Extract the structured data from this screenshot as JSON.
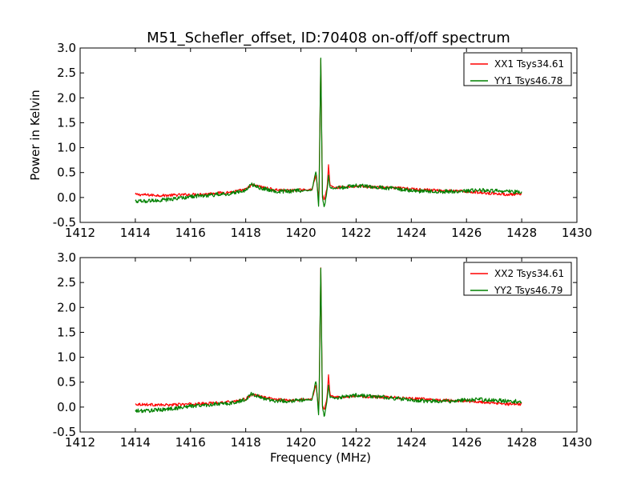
{
  "figure": {
    "title": "M51_Schefler_offset, ID:70408 on-off/off spectrum"
  },
  "chart_data": [
    {
      "type": "line",
      "title": "M51_Schefler_offset, ID:70408 on-off/off spectrum",
      "xlabel": "",
      "ylabel": "Power in Kelvin",
      "xlim": [
        1412,
        1430
      ],
      "ylim": [
        -0.5,
        3.0
      ],
      "xticks": [
        1412,
        1414,
        1416,
        1418,
        1420,
        1422,
        1424,
        1426,
        1428,
        1430
      ],
      "yticks": [
        -0.5,
        0.0,
        0.5,
        1.0,
        1.5,
        2.0,
        2.5,
        3.0
      ],
      "legend_position": "top-right",
      "grid": false,
      "series": [
        {
          "name": "XX1 Tsys34.61",
          "color": "#ff0000",
          "x": [
            1414.0,
            1414.5,
            1415.0,
            1415.5,
            1416.0,
            1416.5,
            1417.0,
            1417.5,
            1418.0,
            1418.2,
            1418.5,
            1419.0,
            1419.5,
            1420.0,
            1420.4,
            1420.55,
            1420.65,
            1420.72,
            1420.78,
            1420.85,
            1420.95,
            1421.0,
            1421.05,
            1421.2,
            1421.5,
            1422.0,
            1422.5,
            1423.0,
            1423.5,
            1424.0,
            1424.5,
            1425.0,
            1425.5,
            1426.0,
            1426.5,
            1427.0,
            1427.5,
            1428.0
          ],
          "y": [
            0.06,
            0.05,
            0.04,
            0.05,
            0.06,
            0.07,
            0.09,
            0.11,
            0.16,
            0.25,
            0.22,
            0.16,
            0.14,
            0.15,
            0.16,
            0.45,
            -0.1,
            2.78,
            0.05,
            -0.05,
            0.2,
            0.66,
            0.25,
            0.2,
            0.21,
            0.22,
            0.21,
            0.2,
            0.19,
            0.17,
            0.16,
            0.14,
            0.13,
            0.12,
            0.1,
            0.08,
            0.06,
            0.06
          ]
        },
        {
          "name": "YY1 Tsys46.78",
          "color": "#008000",
          "x": [
            1414.0,
            1414.5,
            1415.0,
            1415.5,
            1416.0,
            1416.5,
            1417.0,
            1417.5,
            1418.0,
            1418.2,
            1418.5,
            1419.0,
            1419.5,
            1420.0,
            1420.4,
            1420.55,
            1420.65,
            1420.72,
            1420.78,
            1420.85,
            1420.95,
            1421.0,
            1421.05,
            1421.2,
            1421.5,
            1422.0,
            1422.5,
            1423.0,
            1423.5,
            1424.0,
            1424.5,
            1425.0,
            1425.5,
            1426.0,
            1426.5,
            1427.0,
            1427.5,
            1428.0
          ],
          "y": [
            -0.08,
            -0.07,
            -0.05,
            -0.02,
            0.02,
            0.04,
            0.06,
            0.08,
            0.15,
            0.27,
            0.2,
            0.13,
            0.12,
            0.14,
            0.15,
            0.55,
            -0.25,
            2.8,
            0.0,
            -0.2,
            0.15,
            0.45,
            0.2,
            0.18,
            0.2,
            0.24,
            0.22,
            0.2,
            0.17,
            0.14,
            0.12,
            0.12,
            0.12,
            0.14,
            0.15,
            0.14,
            0.12,
            0.11
          ]
        }
      ]
    },
    {
      "type": "line",
      "title": "",
      "xlabel": "Frequency (MHz)",
      "ylabel": "",
      "xlim": [
        1412,
        1430
      ],
      "ylim": [
        -0.5,
        3.0
      ],
      "xticks": [
        1412,
        1414,
        1416,
        1418,
        1420,
        1422,
        1424,
        1426,
        1428,
        1430
      ],
      "yticks": [
        -0.5,
        0.0,
        0.5,
        1.0,
        1.5,
        2.0,
        2.5,
        3.0
      ],
      "legend_position": "top-right",
      "grid": false,
      "series": [
        {
          "name": "XX2 Tsys34.61",
          "color": "#ff0000",
          "x": [
            1414.0,
            1414.5,
            1415.0,
            1415.5,
            1416.0,
            1416.5,
            1417.0,
            1417.5,
            1418.0,
            1418.2,
            1418.5,
            1419.0,
            1419.5,
            1420.0,
            1420.4,
            1420.55,
            1420.65,
            1420.72,
            1420.78,
            1420.85,
            1420.95,
            1421.0,
            1421.05,
            1421.2,
            1421.5,
            1422.0,
            1422.5,
            1423.0,
            1423.5,
            1424.0,
            1424.5,
            1425.0,
            1425.5,
            1426.0,
            1426.5,
            1427.0,
            1427.5,
            1428.0
          ],
          "y": [
            0.06,
            0.05,
            0.04,
            0.05,
            0.06,
            0.07,
            0.09,
            0.11,
            0.16,
            0.25,
            0.22,
            0.16,
            0.14,
            0.15,
            0.16,
            0.45,
            -0.1,
            2.78,
            0.05,
            -0.05,
            0.2,
            0.66,
            0.25,
            0.2,
            0.21,
            0.22,
            0.21,
            0.2,
            0.19,
            0.17,
            0.16,
            0.14,
            0.13,
            0.12,
            0.1,
            0.08,
            0.06,
            0.06
          ]
        },
        {
          "name": "YY2 Tsys46.79",
          "color": "#008000",
          "x": [
            1414.0,
            1414.5,
            1415.0,
            1415.5,
            1416.0,
            1416.5,
            1417.0,
            1417.5,
            1418.0,
            1418.2,
            1418.5,
            1419.0,
            1419.5,
            1420.0,
            1420.4,
            1420.55,
            1420.65,
            1420.72,
            1420.78,
            1420.85,
            1420.95,
            1421.0,
            1421.05,
            1421.2,
            1421.5,
            1422.0,
            1422.5,
            1423.0,
            1423.5,
            1424.0,
            1424.5,
            1425.0,
            1425.5,
            1426.0,
            1426.5,
            1427.0,
            1427.5,
            1428.0
          ],
          "y": [
            -0.08,
            -0.07,
            -0.05,
            -0.02,
            0.02,
            0.04,
            0.06,
            0.08,
            0.15,
            0.27,
            0.2,
            0.13,
            0.12,
            0.14,
            0.15,
            0.55,
            -0.25,
            2.8,
            0.0,
            -0.2,
            0.15,
            0.45,
            0.2,
            0.18,
            0.2,
            0.24,
            0.22,
            0.2,
            0.17,
            0.14,
            0.12,
            0.12,
            0.12,
            0.14,
            0.15,
            0.14,
            0.12,
            0.11
          ]
        }
      ]
    }
  ]
}
